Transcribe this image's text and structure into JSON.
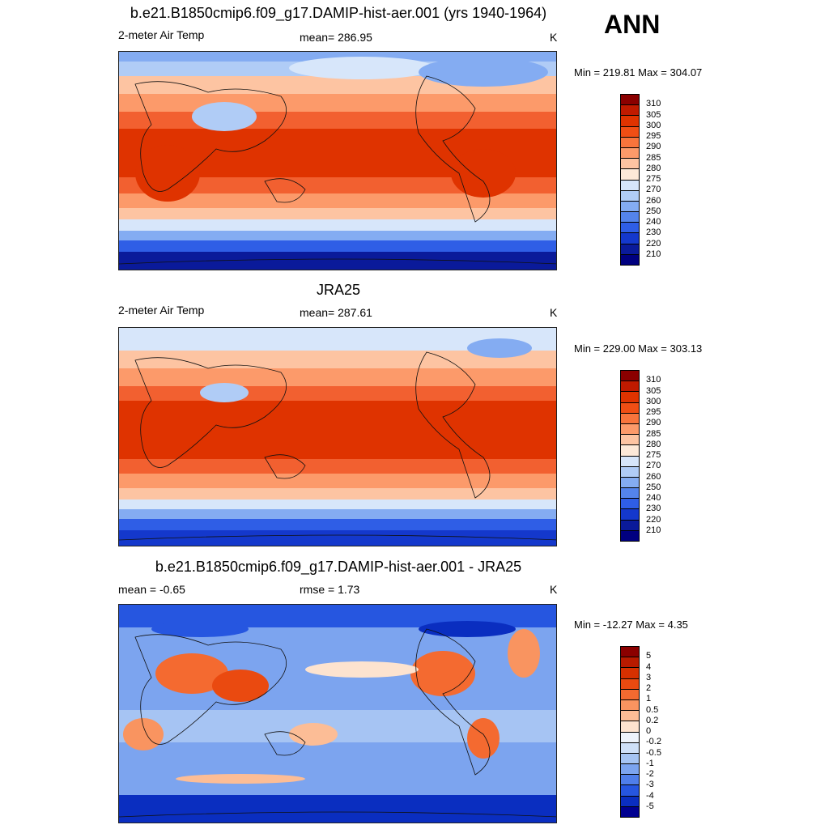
{
  "season": "ANN",
  "panels": [
    {
      "title": "b.e21.B1850cmip6.f09_g17.DAMIP-hist-aer.001 (yrs 1940-1964)",
      "left_label": "2-meter Air Temp",
      "center_label": "mean= 286.95",
      "units": "K",
      "minmax": "Min = 219.81 Max = 304.07",
      "colorbar": {
        "labels": [
          "310",
          "305",
          "300",
          "295",
          "290",
          "285",
          "280",
          "275",
          "270",
          "260",
          "250",
          "240",
          "230",
          "220",
          "210"
        ],
        "colors": [
          "#8b0000",
          "#c01a00",
          "#df3300",
          "#f04e14",
          "#f8743c",
          "#fc9a6a",
          "#fdc4a2",
          "#fde9d8",
          "#d7e6fa",
          "#b0ccf6",
          "#84acf2",
          "#5484ec",
          "#2f5ee6",
          "#1438cc",
          "#0a1a9a",
          "#000080"
        ]
      }
    },
    {
      "title": "JRA25",
      "left_label": "2-meter Air Temp",
      "center_label": "mean= 287.61",
      "units": "K",
      "minmax": "Min = 229.00 Max = 303.13",
      "colorbar": {
        "labels": [
          "310",
          "305",
          "300",
          "295",
          "290",
          "285",
          "280",
          "275",
          "270",
          "260",
          "250",
          "240",
          "230",
          "220",
          "210"
        ],
        "colors": [
          "#8b0000",
          "#c01a00",
          "#df3300",
          "#f04e14",
          "#f8743c",
          "#fc9a6a",
          "#fdc4a2",
          "#fde9d8",
          "#d7e6fa",
          "#b0ccf6",
          "#84acf2",
          "#5484ec",
          "#2f5ee6",
          "#1438cc",
          "#0a1a9a",
          "#000080"
        ]
      }
    },
    {
      "title": "b.e21.B1850cmip6.f09_g17.DAMIP-hist-aer.001 - JRA25",
      "left_label": "mean =  -0.65",
      "center_label": "rmse =   1.73",
      "units": "K",
      "minmax": "Min = -12.27 Max =   4.35",
      "colorbar": {
        "labels": [
          "5",
          "4",
          "3",
          "2",
          "1",
          "0.5",
          "0.2",
          "0",
          "-0.2",
          "-0.5",
          "-1",
          "-2",
          "-3",
          "-4",
          "-5"
        ],
        "colors": [
          "#8b0000",
          "#b81a00",
          "#d63000",
          "#ea4a10",
          "#f46a30",
          "#f99460",
          "#fcbd96",
          "#fde3cf",
          "#eef3fb",
          "#cfe0f8",
          "#a6c4f3",
          "#7ca4ef",
          "#4f7eea",
          "#2656e0",
          "#0a2ec0",
          "#000090"
        ]
      }
    }
  ]
}
